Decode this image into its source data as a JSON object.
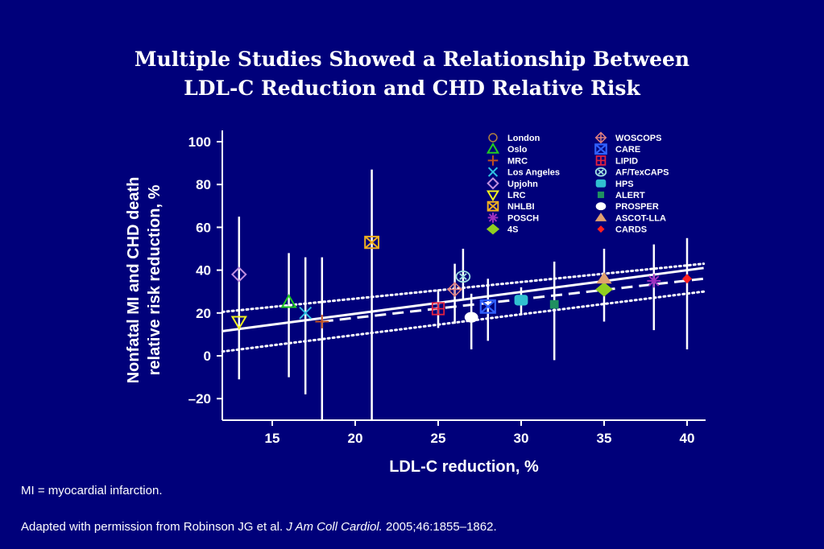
{
  "slide": {
    "title_line1": "Multiple Studies Showed a Relationship Between",
    "title_line2": "LDL-C Reduction and CHD Relative Risk",
    "footnote": "MI = myocardial infarction.",
    "citation_prefix": "Adapted with permission from Robinson JG et al. ",
    "citation_journal": "J Am Coll Cardiol.",
    "citation_suffix": " 2005;46:1855–1862."
  },
  "chart_data": {
    "type": "scatter",
    "xlabel": "LDL-C reduction, %",
    "ylabel_line1": "Nonfatal MI and CHD death",
    "ylabel_line2": "relative risk reduction, %",
    "xlim": [
      12,
      41
    ],
    "ylim": [
      -30,
      100
    ],
    "xticks": [
      "15",
      "20",
      "25",
      "30",
      "35",
      "40"
    ],
    "yticks": [
      "100",
      "80",
      "60",
      "40",
      "20",
      "0",
      "–20"
    ],
    "colors": {
      "background": "#00007a",
      "axis": "#ffffff",
      "line": "#ffffff"
    },
    "points": [
      {
        "name": "London",
        "x": 13,
        "y": 38,
        "low": 38,
        "high": 38,
        "marker": "circle",
        "color": "#b08040"
      },
      {
        "name": "Oslo",
        "x": 16,
        "y": 25,
        "low": -10,
        "high": 48,
        "marker": "triangle",
        "color": "#22cc22"
      },
      {
        "name": "MRC",
        "x": 18,
        "y": 16,
        "low": -30,
        "high": 46,
        "marker": "plus",
        "color": "#c05020"
      },
      {
        "name": "Los Angeles",
        "x": 17,
        "y": 20,
        "low": -18,
        "high": 46,
        "marker": "x",
        "color": "#30c0e0"
      },
      {
        "name": "Upjohn",
        "x": 13,
        "y": 38,
        "low": 38,
        "high": 38,
        "marker": "diamond-open",
        "color": "#c090e0"
      },
      {
        "name": "LRC",
        "x": 13,
        "y": 16,
        "low": -11,
        "high": 65,
        "marker": "triangle-down",
        "color": "#f0f020"
      },
      {
        "name": "NHLBI",
        "x": 21,
        "y": 53,
        "low": -30,
        "high": 87,
        "marker": "box-x",
        "color": "#f0b020"
      },
      {
        "name": "POSCH",
        "x": 38,
        "y": 35,
        "low": 12,
        "high": 52,
        "marker": "asterisk",
        "color": "#a030c0"
      },
      {
        "name": "4S",
        "x": 35,
        "y": 31,
        "low": 16,
        "high": 50,
        "marker": "diamond",
        "color": "#90d020"
      },
      {
        "name": "WOSCOPS",
        "x": 26,
        "y": 31,
        "low": 15,
        "high": 43,
        "marker": "diamond-plus",
        "color": "#e08080"
      },
      {
        "name": "CARE",
        "x": 28,
        "y": 23,
        "low": 7,
        "high": 36,
        "marker": "box-x-blue",
        "color": "#3060ff"
      },
      {
        "name": "LIPID",
        "x": 25,
        "y": 22,
        "low": 13,
        "high": 31,
        "marker": "box-plus",
        "color": "#e02040"
      },
      {
        "name": "AF/TexCAPS",
        "x": 26.5,
        "y": 37,
        "low": 26,
        "high": 50,
        "marker": "circle-x",
        "color": "#a0e0e0"
      },
      {
        "name": "HPS",
        "x": 30,
        "y": 26,
        "low": 19,
        "high": 32,
        "marker": "roundrect",
        "color": "#30c0d0"
      },
      {
        "name": "ALERT",
        "x": 32,
        "y": 24,
        "low": -2,
        "high": 44,
        "marker": "square",
        "color": "#209060"
      },
      {
        "name": "PROSPER",
        "x": 27,
        "y": 18,
        "low": 3,
        "high": 29,
        "marker": "ellipse",
        "color": "#ffffff"
      },
      {
        "name": "ASCOT-LLA",
        "x": 35,
        "y": 36,
        "low": 36,
        "high": 36,
        "marker": "triangle-filled",
        "color": "#e0a070"
      },
      {
        "name": "CARDS",
        "x": 40,
        "y": 36,
        "low": 3,
        "high": 55,
        "marker": "diamond-small",
        "color": "#ff2020"
      }
    ],
    "regression_lines": [
      {
        "style": "solid",
        "x": [
          12,
          41
        ],
        "y": [
          11.5,
          41
        ]
      },
      {
        "style": "dashed",
        "x": [
          18,
          41
        ],
        "y": [
          16,
          36
        ]
      },
      {
        "style": "dotted-upper",
        "x": [
          12,
          41
        ],
        "y": [
          20.5,
          43
        ]
      },
      {
        "style": "dotted-lower",
        "x": [
          12,
          41
        ],
        "y": [
          2,
          30
        ]
      }
    ],
    "legend_position": "top-right"
  }
}
